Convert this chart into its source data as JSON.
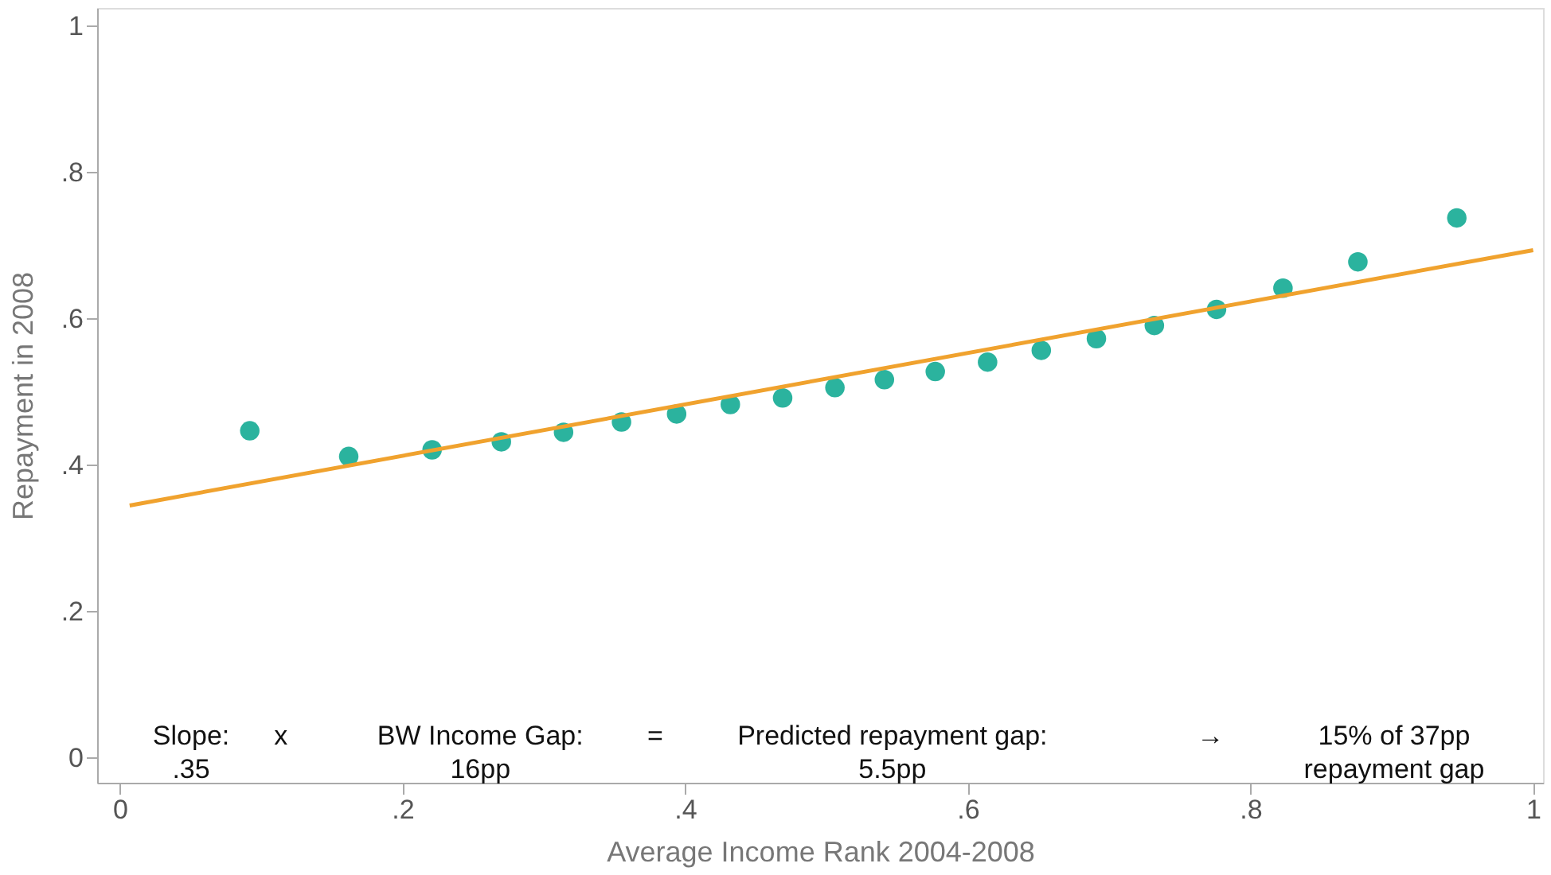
{
  "chart_data": {
    "type": "scatter",
    "xlabel": "Average Income Rank 2004-2008",
    "ylabel": "Repayment in 2008",
    "xlim": [
      -0.016,
      1.007
    ],
    "ylim": [
      -0.034,
      1.025
    ],
    "xticks": [
      {
        "value": 0,
        "label": "0"
      },
      {
        "value": 0.2,
        "label": ".2"
      },
      {
        "value": 0.4,
        "label": ".4"
      },
      {
        "value": 0.6,
        "label": ".6"
      },
      {
        "value": 0.8,
        "label": ".8"
      },
      {
        "value": 1,
        "label": "1"
      }
    ],
    "yticks": [
      {
        "value": 0,
        "label": "0"
      },
      {
        "value": 0.2,
        "label": ".2"
      },
      {
        "value": 0.4,
        "label": ".4"
      },
      {
        "value": 0.6,
        "label": ".6"
      },
      {
        "value": 0.8,
        "label": ".8"
      },
      {
        "value": 1,
        "label": "1"
      }
    ],
    "grid": false,
    "series": [
      {
        "color": "#2bb39e",
        "marker": "circle",
        "x": [
          0.092,
          0.162,
          0.221,
          0.27,
          0.314,
          0.355,
          0.394,
          0.432,
          0.469,
          0.506,
          0.541,
          0.577,
          0.614,
          0.652,
          0.691,
          0.732,
          0.776,
          0.823,
          0.876,
          0.946
        ],
        "values": [
          0.447,
          0.412,
          0.421,
          0.432,
          0.445,
          0.459,
          0.47,
          0.483,
          0.492,
          0.506,
          0.517,
          0.528,
          0.541,
          0.557,
          0.573,
          0.591,
          0.613,
          0.642,
          0.678,
          0.738
        ]
      },
      {
        "type": "line",
        "line_style": "solid",
        "color": "#f0a22e",
        "x": [
          0.007,
          1.0
        ],
        "values": [
          0.345,
          0.694
        ]
      }
    ],
    "annotations": [
      "Slope:\n.35",
      "x",
      "BW Income Gap:\n16pp",
      "=",
      "Predicted repayment gap:\n5.5pp",
      "→",
      "15% of 37pp\nrepayment gap"
    ]
  }
}
